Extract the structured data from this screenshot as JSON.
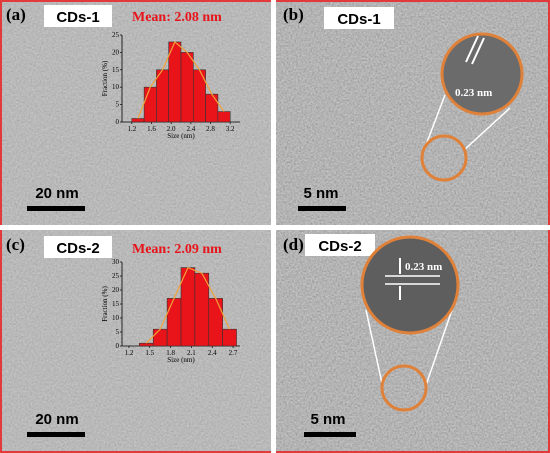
{
  "panels": [
    {
      "label": "(a)",
      "sample": "CDs-1",
      "mean": "Mean: 2.08 nm",
      "scale": "20 nm"
    },
    {
      "label": "(b)",
      "sample": "CDs-1",
      "spacing": "0.23 nm",
      "scale": "5 nm"
    },
    {
      "label": "(c)",
      "sample": "CDs-2",
      "mean": "Mean: 2.09 nm",
      "scale": "20 nm"
    },
    {
      "label": "(d)",
      "sample": "CDs-2",
      "spacing": "0.23 nm",
      "scale": "5 nm"
    }
  ],
  "chart_data": [
    {
      "type": "histogram",
      "bins": [
        1.2,
        1.45,
        1.7,
        1.95,
        2.2,
        2.45,
        2.7,
        2.95,
        3.2
      ],
      "values": [
        1,
        10,
        15,
        23,
        20,
        15,
        8,
        3
      ],
      "color": "#e8141a",
      "fit_color": "#f2a23a",
      "xlim": [
        1.0,
        3.4
      ],
      "xticks": [
        1.2,
        1.6,
        {
          "value": 2,
          "label": "2.0"
        },
        2.4,
        2.8,
        3.2
      ],
      "ylim": [
        0,
        25
      ],
      "yticks": [
        0,
        5,
        10,
        15,
        20,
        25
      ],
      "xlabel": "Size (nm)",
      "ylabel": "Fraction (%)"
    },
    {
      "type": "histogram",
      "bins": [
        1.35,
        1.55,
        1.75,
        1.95,
        2.15,
        2.35,
        2.55,
        2.75
      ],
      "values": [
        1,
        6,
        17,
        28,
        26,
        17,
        6
      ],
      "color": "#e8141a",
      "fit_color": "#f2a23a",
      "xlim": [
        1.1,
        2.8
      ],
      "xticks": [
        1.2,
        1.5,
        1.8,
        2.1,
        2.4,
        2.7
      ],
      "ylim": [
        0,
        30
      ],
      "yticks": [
        0,
        5,
        10,
        15,
        20,
        25,
        30
      ],
      "xlabel": "Size (nm)",
      "ylabel": "Fraction (%)"
    }
  ]
}
